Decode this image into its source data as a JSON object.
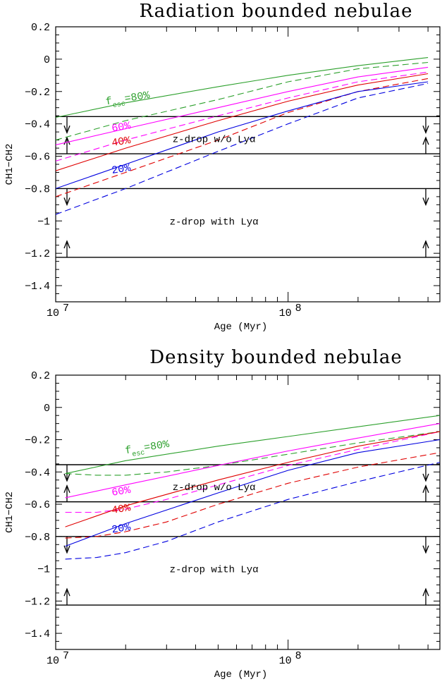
{
  "chart_data": [
    {
      "type": "line",
      "title": "Radiation bounded nebulae",
      "xlabel": "Age (Myr)",
      "ylabel": "CH1−CH2",
      "xscale": "log",
      "xlim": [
        10000000,
        450000000
      ],
      "ylim": [
        -1.5,
        0.2
      ],
      "yticks": [
        0.2,
        0,
        -0.2,
        -0.4,
        -0.6,
        -0.8,
        -1,
        -1.2,
        -1.4
      ],
      "ytick_labels": [
        "0.2",
        "0",
        "−0.2",
        "−0.4",
        "−0.6",
        "−0.8",
        "−1",
        "−1.2",
        "−1.4"
      ],
      "xticks": [
        {
          "value": 10000000,
          "base": "10",
          "exp": "7"
        },
        {
          "value": 100000000,
          "base": "10",
          "exp": "8"
        }
      ],
      "hlines": [
        -0.355,
        -0.585,
        -0.8,
        -1.225
      ],
      "arrows": [
        {
          "y_from": -0.355,
          "y_to": -0.455
        },
        {
          "y_from": -0.585,
          "y_to": -0.485
        },
        {
          "y_from": -0.8,
          "y_to": -0.9
        },
        {
          "y_from": -1.225,
          "y_to": -1.125
        }
      ],
      "band_labels": [
        {
          "text": "z-drop w/o Lyα",
          "x": 48000000,
          "y": -0.49
        },
        {
          "text": "z-drop with Lyα",
          "x": 48000000,
          "y": -1.0
        }
      ],
      "curve_labels": [
        {
          "text": "f",
          "sub": "esc",
          "tail": "=80%",
          "color": "#2ca02c",
          "x": 16500000,
          "y": -0.26
        },
        {
          "text": "60%",
          "sub": "",
          "tail": "",
          "color": "#ff00ff",
          "x": 17500000,
          "y": -0.425
        },
        {
          "text": "40%",
          "sub": "",
          "tail": "",
          "color": "#e00000",
          "x": 17500000,
          "y": -0.515
        },
        {
          "text": "20%",
          "sub": "",
          "tail": "",
          "color": "#0000e0",
          "x": 17500000,
          "y": -0.685
        }
      ],
      "series": [
        {
          "color": "#2ca02c",
          "dashed": false,
          "x": [
            10000000,
            20000000,
            50000000,
            100000000,
            200000000,
            400000000
          ],
          "y": [
            -0.36,
            -0.27,
            -0.17,
            -0.1,
            -0.04,
            0.01
          ]
        },
        {
          "color": "#2ca02c",
          "dashed": true,
          "x": [
            10000000,
            20000000,
            50000000,
            100000000,
            200000000,
            400000000
          ],
          "y": [
            -0.5,
            -0.38,
            -0.25,
            -0.14,
            -0.06,
            -0.02
          ]
        },
        {
          "color": "#ff00ff",
          "dashed": false,
          "x": [
            10000000,
            20000000,
            50000000,
            100000000,
            200000000,
            400000000
          ],
          "y": [
            -0.53,
            -0.43,
            -0.3,
            -0.2,
            -0.11,
            -0.05
          ]
        },
        {
          "color": "#ff00ff",
          "dashed": true,
          "x": [
            10000000,
            20000000,
            50000000,
            100000000,
            200000000,
            400000000
          ],
          "y": [
            -0.63,
            -0.5,
            -0.35,
            -0.24,
            -0.14,
            -0.08
          ]
        },
        {
          "color": "#e00000",
          "dashed": false,
          "x": [
            10000000,
            20000000,
            50000000,
            100000000,
            200000000,
            400000000
          ],
          "y": [
            -0.69,
            -0.55,
            -0.38,
            -0.26,
            -0.16,
            -0.09
          ]
        },
        {
          "color": "#e00000",
          "dashed": true,
          "x": [
            10000000,
            20000000,
            50000000,
            100000000,
            200000000,
            400000000
          ],
          "y": [
            -0.85,
            -0.7,
            -0.5,
            -0.33,
            -0.2,
            -0.12
          ]
        },
        {
          "color": "#0000e0",
          "dashed": false,
          "x": [
            10000000,
            20000000,
            50000000,
            100000000,
            200000000,
            400000000
          ],
          "y": [
            -0.8,
            -0.65,
            -0.45,
            -0.32,
            -0.2,
            -0.14
          ]
        },
        {
          "color": "#0000e0",
          "dashed": true,
          "x": [
            10000000,
            20000000,
            50000000,
            100000000,
            200000000,
            400000000
          ],
          "y": [
            -0.96,
            -0.8,
            -0.57,
            -0.4,
            -0.24,
            -0.15
          ]
        }
      ]
    },
    {
      "type": "line",
      "title": "Density bounded nebulae",
      "xlabel": "Age (Myr)",
      "ylabel": "CH1−CH2",
      "xscale": "log",
      "xlim": [
        10000000,
        450000000
      ],
      "ylim": [
        -1.5,
        0.2
      ],
      "yticks": [
        0.2,
        0,
        -0.2,
        -0.4,
        -0.6,
        -0.8,
        -1,
        -1.2,
        -1.4
      ],
      "ytick_labels": [
        "0.2",
        "0",
        "−0.2",
        "−0.4",
        "−0.6",
        "−0.8",
        "−1",
        "−1.2",
        "−1.4"
      ],
      "xticks": [
        {
          "value": 10000000,
          "base": "10",
          "exp": "7"
        },
        {
          "value": 100000000,
          "base": "10",
          "exp": "8"
        }
      ],
      "hlines": [
        -0.355,
        -0.585,
        -0.8,
        -1.225
      ],
      "arrows": [
        {
          "y_from": -0.355,
          "y_to": -0.455
        },
        {
          "y_from": -0.585,
          "y_to": -0.485
        },
        {
          "y_from": -0.8,
          "y_to": -0.9
        },
        {
          "y_from": -1.225,
          "y_to": -1.125
        }
      ],
      "band_labels": [
        {
          "text": "z-drop w/o Lyα",
          "x": 48000000,
          "y": -0.49
        },
        {
          "text": "z-drop with Lyα",
          "x": 48000000,
          "y": -1.0
        }
      ],
      "curve_labels": [
        {
          "text": "f",
          "sub": "esc",
          "tail": "=80%",
          "color": "#2ca02c",
          "x": 20000000,
          "y": -0.265
        },
        {
          "text": "60%",
          "sub": "",
          "tail": "",
          "color": "#ff00ff",
          "x": 17500000,
          "y": -0.525
        },
        {
          "text": "40%",
          "sub": "",
          "tail": "",
          "color": "#e00000",
          "x": 17500000,
          "y": -0.635
        },
        {
          "text": "20%",
          "sub": "",
          "tail": "",
          "color": "#0000e0",
          "x": 17500000,
          "y": -0.755
        }
      ],
      "series": [
        {
          "color": "#2ca02c",
          "dashed": false,
          "x": [
            11000000,
            20000000,
            50000000,
            100000000,
            200000000,
            450000000
          ],
          "y": [
            -0.41,
            -0.33,
            -0.24,
            -0.18,
            -0.12,
            -0.05
          ]
        },
        {
          "color": "#2ca02c",
          "dashed": true,
          "x": [
            11000000,
            15000000,
            20000000,
            30000000,
            50000000,
            100000000,
            200000000,
            450000000
          ],
          "y": [
            -0.41,
            -0.42,
            -0.42,
            -0.4,
            -0.36,
            -0.29,
            -0.22,
            -0.15
          ]
        },
        {
          "color": "#ff00ff",
          "dashed": false,
          "x": [
            11000000,
            20000000,
            50000000,
            100000000,
            200000000,
            450000000
          ],
          "y": [
            -0.56,
            -0.48,
            -0.36,
            -0.27,
            -0.19,
            -0.1
          ]
        },
        {
          "color": "#ff00ff",
          "dashed": true,
          "x": [
            11000000,
            15000000,
            20000000,
            30000000,
            50000000,
            100000000,
            200000000,
            450000000
          ],
          "y": [
            -0.65,
            -0.65,
            -0.63,
            -0.57,
            -0.48,
            -0.36,
            -0.26,
            -0.15
          ]
        },
        {
          "color": "#e00000",
          "dashed": false,
          "x": [
            11000000,
            20000000,
            50000000,
            100000000,
            200000000,
            450000000
          ],
          "y": [
            -0.74,
            -0.61,
            -0.45,
            -0.34,
            -0.24,
            -0.15
          ]
        },
        {
          "color": "#e00000",
          "dashed": true,
          "x": [
            11000000,
            15000000,
            20000000,
            30000000,
            50000000,
            100000000,
            200000000,
            450000000
          ],
          "y": [
            -0.81,
            -0.8,
            -0.77,
            -0.71,
            -0.6,
            -0.47,
            -0.37,
            -0.28
          ]
        },
        {
          "color": "#0000e0",
          "dashed": false,
          "x": [
            11000000,
            20000000,
            50000000,
            100000000,
            200000000,
            450000000
          ],
          "y": [
            -0.86,
            -0.72,
            -0.53,
            -0.39,
            -0.28,
            -0.2
          ]
        },
        {
          "color": "#0000e0",
          "dashed": true,
          "x": [
            11000000,
            15000000,
            20000000,
            30000000,
            50000000,
            100000000,
            200000000,
            450000000
          ],
          "y": [
            -0.94,
            -0.93,
            -0.9,
            -0.83,
            -0.71,
            -0.57,
            -0.46,
            -0.34
          ]
        }
      ]
    }
  ]
}
